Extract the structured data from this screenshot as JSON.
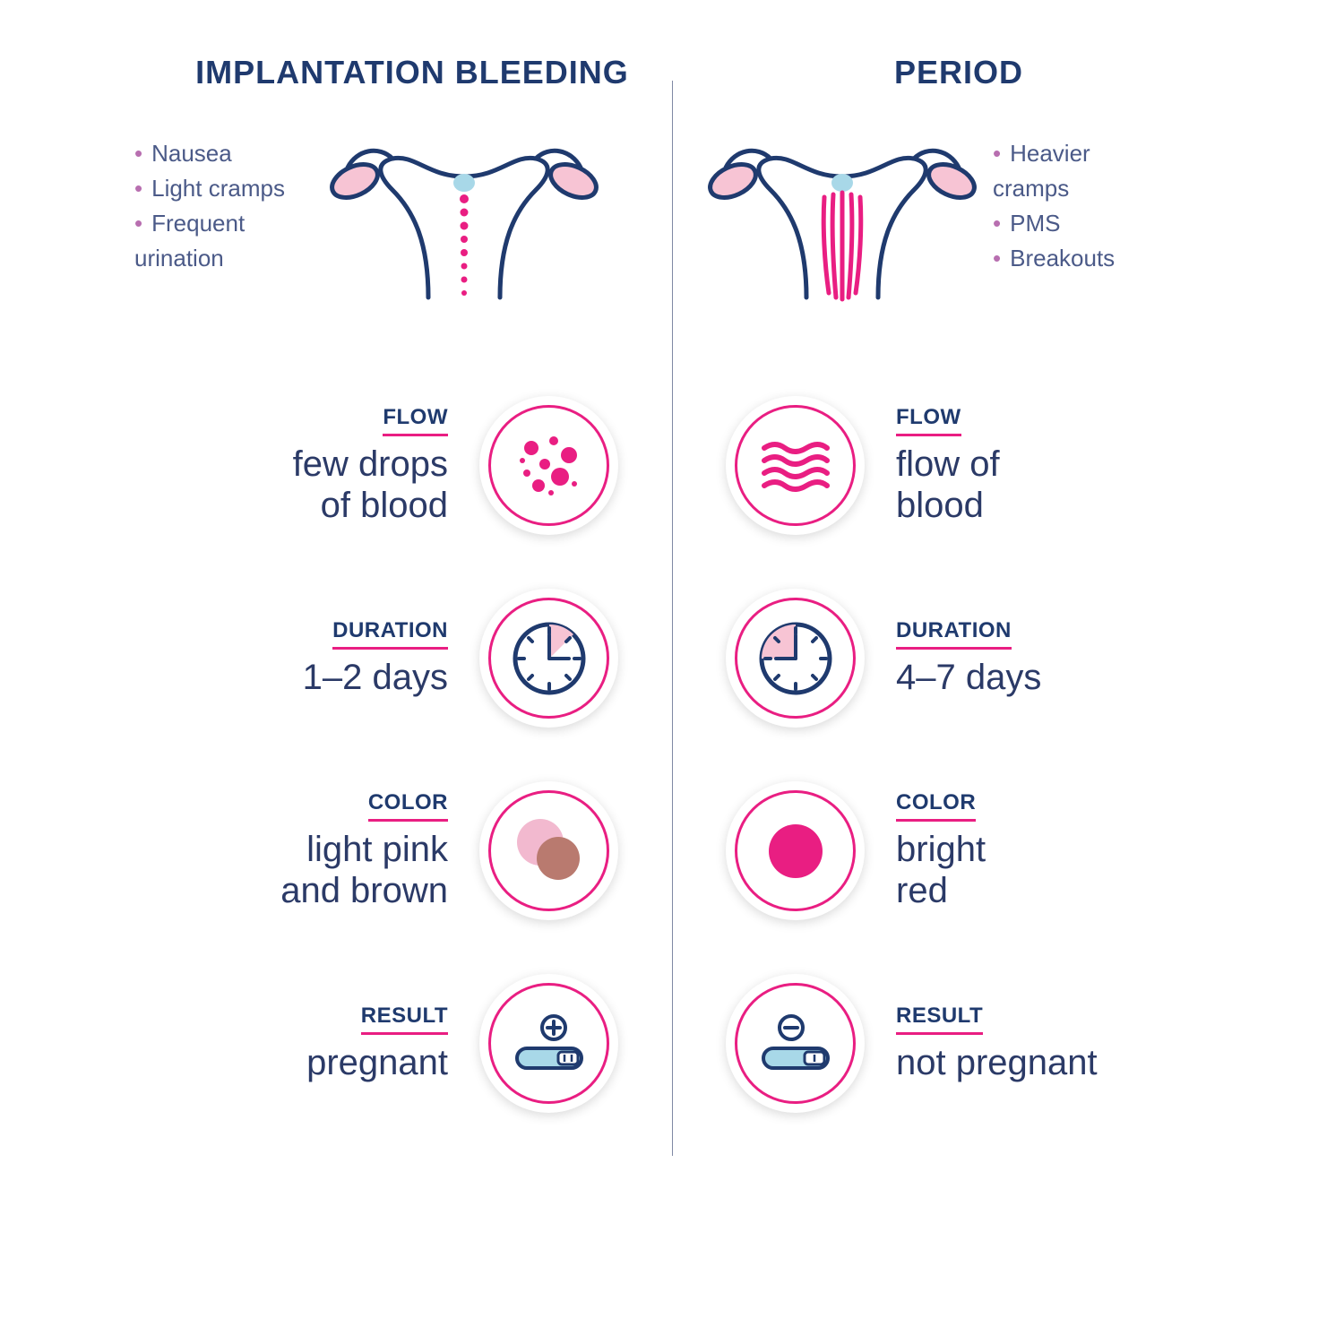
{
  "navy": "#1f3a6e",
  "navy2": "#2b3a67",
  "pink": "#e91e82",
  "lightpink": "#f7c4d4",
  "blue": "#a8d8e8",
  "brown": "#b97a6f",
  "palepink": "#f2b9cf",
  "left": {
    "title": "IMPLANTATION BLEEDING",
    "symptoms": [
      "Nausea",
      "Light cramps",
      "Frequent urination"
    ],
    "rows": [
      {
        "label": "FLOW",
        "value": "few drops\nof blood"
      },
      {
        "label": "DURATION",
        "value": "1–2 days"
      },
      {
        "label": "COLOR",
        "value": "light pink\nand brown"
      },
      {
        "label": "RESULT",
        "value": "pregnant"
      }
    ]
  },
  "right": {
    "title": "PERIOD",
    "symptoms": [
      "Heavier cramps",
      "PMS",
      "Breakouts"
    ],
    "rows": [
      {
        "label": "FLOW",
        "value": "flow of\nblood"
      },
      {
        "label": "DURATION",
        "value": "4–7 days"
      },
      {
        "label": "COLOR",
        "value": "bright\nred"
      },
      {
        "label": "RESULT",
        "value": "not pregnant"
      }
    ]
  }
}
